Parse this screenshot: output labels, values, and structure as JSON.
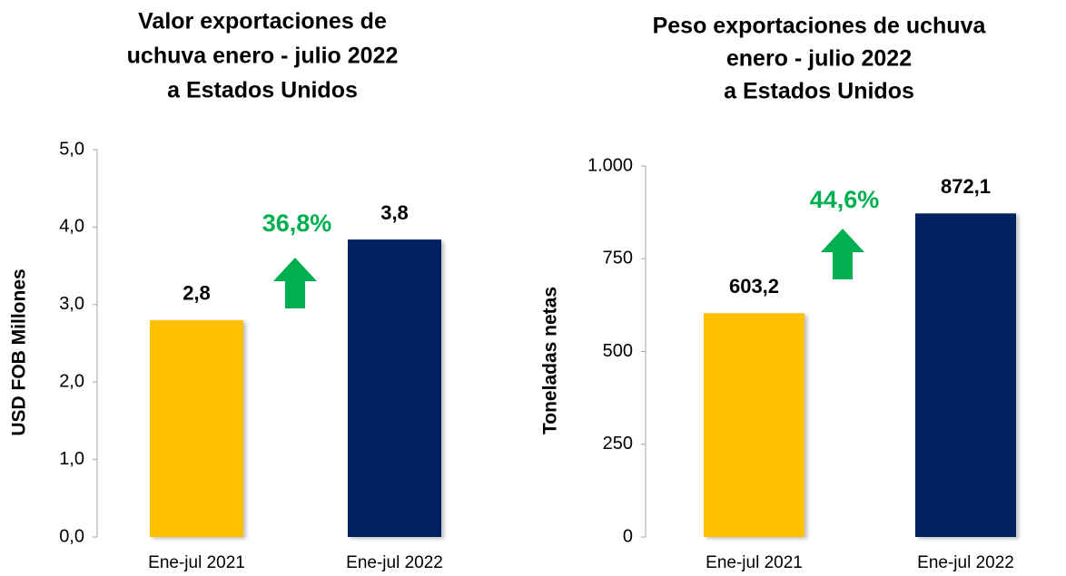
{
  "chart_data": [
    {
      "type": "bar",
      "title": [
        "Valor exportaciones de",
        "uchuva enero - julio 2022",
        "a Estados Unidos"
      ],
      "y_label": "USD FOB Millones",
      "categories": [
        "Ene-jul 2021",
        "Ene-jul 2022"
      ],
      "values": [
        2.8,
        3.84
      ],
      "value_labels": [
        "2,8",
        "3,8"
      ],
      "colors": [
        "#ffc000",
        "#002060"
      ],
      "ylim": [
        0,
        5
      ],
      "yticks": [
        {
          "value": 0,
          "label": "0,0"
        },
        {
          "value": 1,
          "label": "1,0"
        },
        {
          "value": 2,
          "label": "2,0"
        },
        {
          "value": 3,
          "label": "3,0"
        },
        {
          "value": 4,
          "label": "4,0"
        },
        {
          "value": 5,
          "label": "5,0"
        }
      ],
      "annotation": "36,8%"
    },
    {
      "type": "bar",
      "title": [
        "Peso exportaciones de uchuva",
        "enero - julio 2022",
        "a Estados Unidos"
      ],
      "y_label": "Toneladas netas",
      "categories": [
        "Ene-jul 2021",
        "Ene-jul 2022"
      ],
      "values": [
        603.2,
        872.1
      ],
      "value_labels": [
        "603,2",
        "872,1"
      ],
      "colors": [
        "#ffc000",
        "#002060"
      ],
      "ylim": [
        0,
        1000
      ],
      "yticks": [
        0,
        250,
        500,
        750,
        {
          "value": 1000,
          "label": "1.000"
        }
      ],
      "annotation": "44,6%"
    }
  ]
}
